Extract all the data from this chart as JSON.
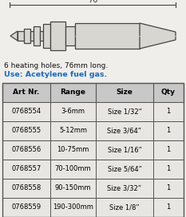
{
  "title_line1": "6 heating holes, 76mm long.",
  "title_line2": "Use: Acetylene fuel gas.",
  "title_color": "#1a6abf",
  "headers": [
    "Art Nr.",
    "Range",
    "Size",
    "Qty"
  ],
  "rows": [
    [
      "0768554",
      "3-6mm",
      "Size 1/32”",
      "1"
    ],
    [
      "0768555",
      "5-12mm",
      "Size 3/64”",
      "1"
    ],
    [
      "0768556",
      "10-75mm",
      "Size 1/16”",
      "1"
    ],
    [
      "0768557",
      "70-100mm",
      "Size 5/64”",
      "1"
    ],
    [
      "0768558",
      "90-150mm",
      "Size 3/32”",
      "1"
    ],
    [
      "0768559",
      "190-300mm",
      "Size 1/8”",
      "1"
    ]
  ],
  "bg_color": "#f0eeea",
  "header_bg": "#c8c8c8",
  "row_bg": "#e8e6e2",
  "table_border_color": "#555555",
  "nozzle_line_color": "#444444",
  "nozzle_fill": "#d8d6d0",
  "dim_color": "#333333",
  "annotation": "76"
}
